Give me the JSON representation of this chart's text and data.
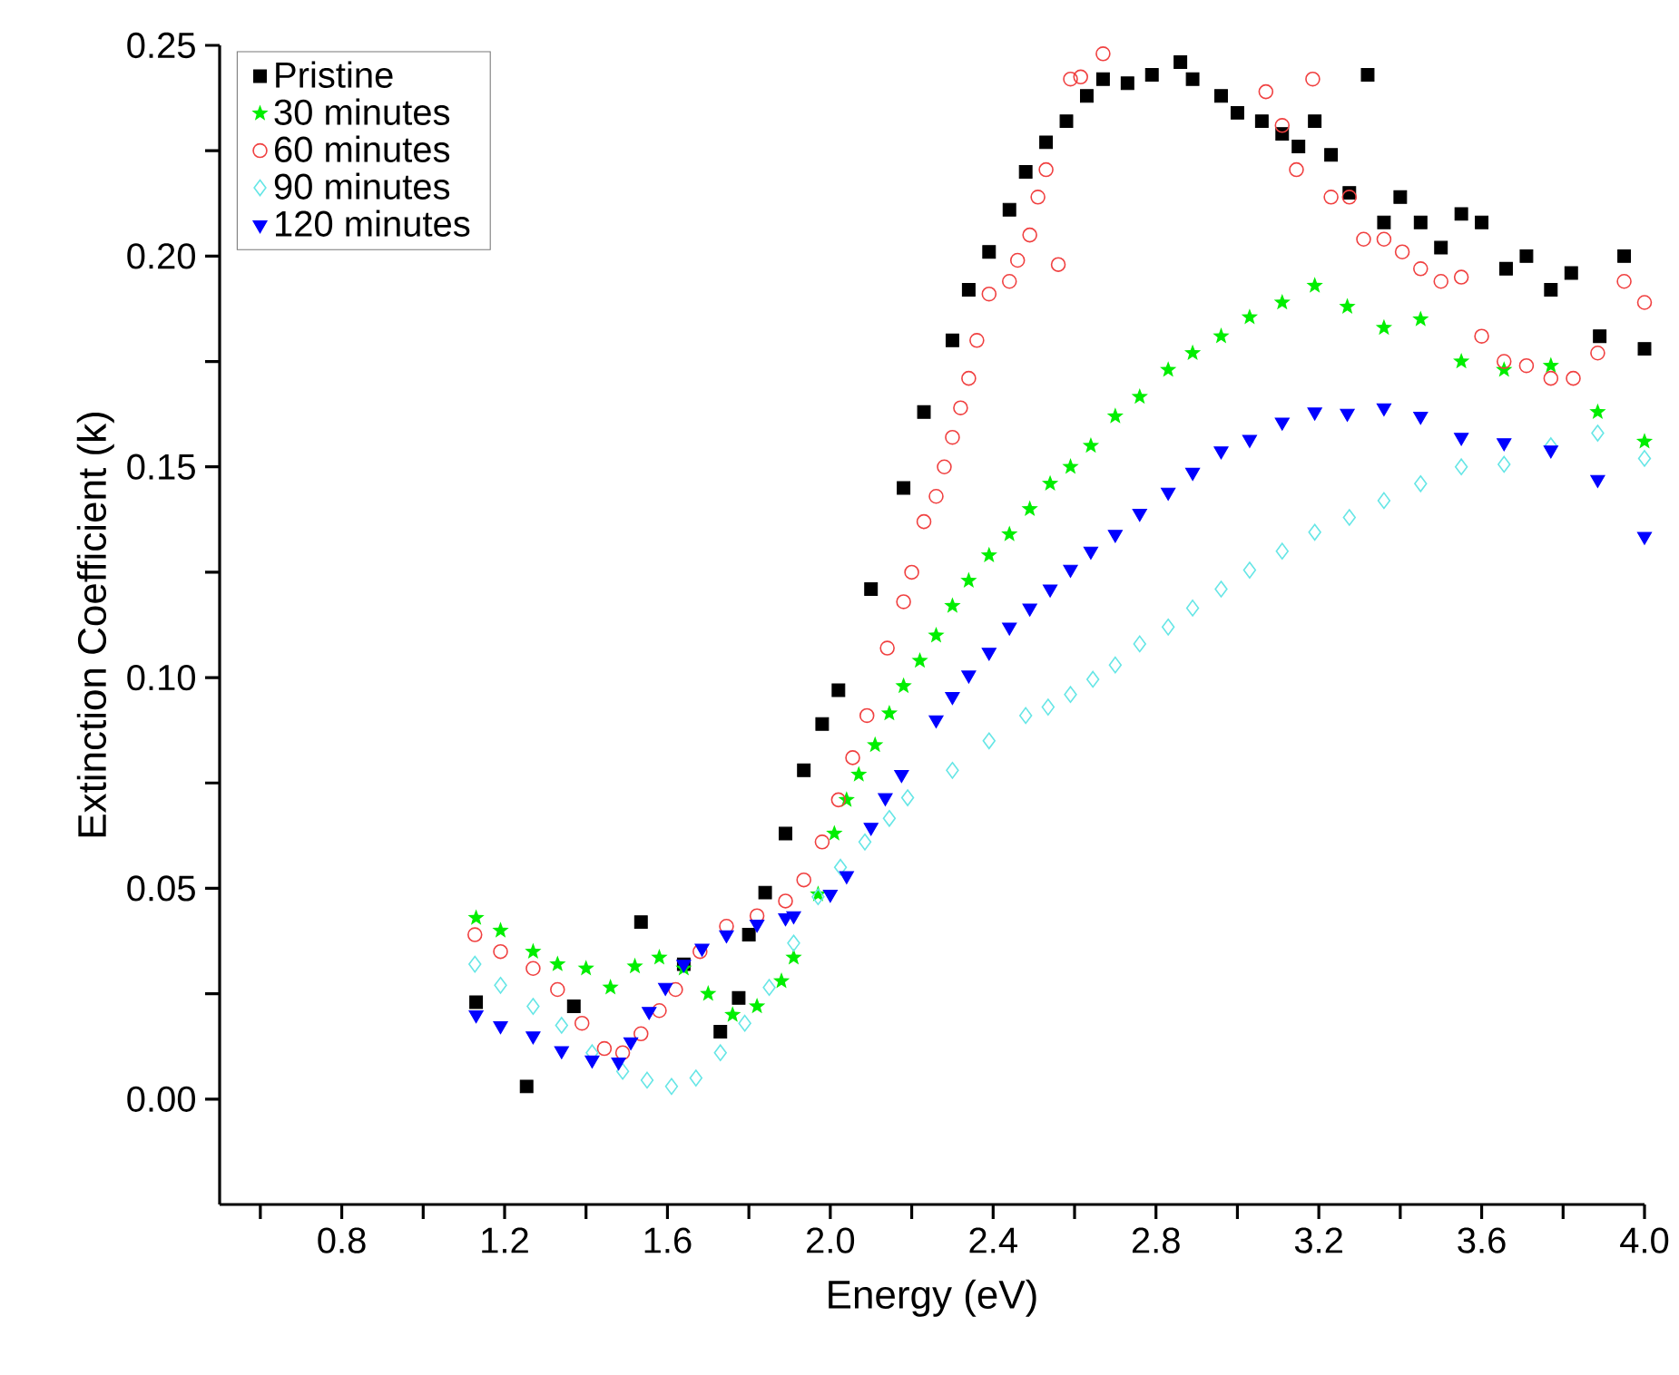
{
  "chart_data": {
    "type": "scatter",
    "xlabel": "Energy (eV)",
    "ylabel": "Extinction Coefficient (k)",
    "xlim": [
      0.5,
      4.0
    ],
    "ylim": [
      -0.025,
      0.25
    ],
    "xticks": [
      {
        "value": 0.6,
        "label": null
      },
      0.8,
      {
        "value": 1.0,
        "label": null
      },
      1.2,
      {
        "value": 1.4,
        "label": null
      },
      1.6,
      {
        "value": 1.8,
        "label": null
      },
      {
        "value": 2.0,
        "label": "2.0"
      },
      {
        "value": 2.2,
        "label": null
      },
      2.4,
      {
        "value": 2.6,
        "label": null
      },
      2.8,
      {
        "value": 3.0,
        "label": null
      },
      3.2,
      {
        "value": 3.4,
        "label": null
      },
      3.6,
      {
        "value": 3.8,
        "label": null
      },
      {
        "value": 4.0,
        "label": "4.0"
      }
    ],
    "yticks": [
      {
        "value": 0.0,
        "label": "0.00"
      },
      {
        "value": 0.025,
        "label": null
      },
      {
        "value": 0.05,
        "label": "0.05"
      },
      {
        "value": 0.075,
        "label": null
      },
      {
        "value": 0.1,
        "label": "0.10"
      },
      {
        "value": 0.125,
        "label": null
      },
      {
        "value": 0.15,
        "label": "0.15"
      },
      {
        "value": 0.175,
        "label": null
      },
      {
        "value": 0.2,
        "label": "0.20"
      },
      {
        "value": 0.225,
        "label": null
      },
      {
        "value": 0.25,
        "label": "0.25"
      }
    ],
    "legend": "top left",
    "grid": false,
    "series": [
      {
        "name": "Pristine",
        "color": "#000000",
        "marker": "square",
        "x": [
          1.13,
          1.254,
          1.37,
          1.535,
          1.64,
          1.73,
          1.775,
          1.8,
          1.84,
          1.89,
          1.935,
          1.98,
          2.02,
          2.1,
          2.18,
          2.23,
          2.3,
          2.34,
          2.39,
          2.44,
          2.48,
          2.53,
          2.58,
          2.63,
          2.67,
          2.73,
          2.79,
          2.86,
          2.89,
          2.96,
          3.0,
          3.06,
          3.11,
          3.15,
          3.19,
          3.23,
          3.275,
          3.32,
          3.36,
          3.4,
          3.45,
          3.5,
          3.55,
          3.6,
          3.66,
          3.71,
          3.77,
          3.82,
          3.89,
          3.95,
          4.0
        ],
        "values": [
          0.023,
          0.003,
          0.022,
          0.042,
          0.032,
          0.016,
          0.024,
          0.039,
          0.049,
          0.063,
          0.078,
          0.089,
          0.097,
          0.121,
          0.145,
          0.163,
          0.18,
          0.192,
          0.201,
          0.211,
          0.22,
          0.227,
          0.232,
          0.238,
          0.242,
          0.241,
          0.243,
          0.246,
          0.242,
          0.238,
          0.234,
          0.232,
          0.229,
          0.226,
          0.232,
          0.224,
          0.215,
          0.243,
          0.208,
          0.214,
          0.208,
          0.202,
          0.21,
          0.208,
          0.197,
          0.2,
          0.192,
          0.196,
          0.181,
          0.2,
          0.178
        ]
      },
      {
        "name": "30 minutes",
        "color": "#00ee00",
        "marker": "star",
        "x": [
          1.13,
          1.19,
          1.27,
          1.33,
          1.4,
          1.46,
          1.52,
          1.58,
          1.64,
          1.7,
          1.76,
          1.82,
          1.88,
          1.91,
          1.97,
          2.01,
          2.04,
          2.07,
          2.11,
          2.145,
          2.18,
          2.22,
          2.26,
          2.3,
          2.34,
          2.39,
          2.44,
          2.49,
          2.54,
          2.59,
          2.64,
          2.7,
          2.76,
          2.83,
          2.89,
          2.96,
          3.03,
          3.11,
          3.19,
          3.27,
          3.36,
          3.45,
          3.55,
          3.655,
          3.77,
          3.885,
          4.0
        ],
        "values": [
          0.043,
          0.04,
          0.035,
          0.032,
          0.031,
          0.0265,
          0.0315,
          0.0336,
          0.031,
          0.025,
          0.02,
          0.022,
          0.028,
          0.0336,
          0.0486,
          0.063,
          0.071,
          0.077,
          0.084,
          0.0915,
          0.098,
          0.104,
          0.11,
          0.117,
          0.123,
          0.129,
          0.134,
          0.14,
          0.146,
          0.15,
          0.155,
          0.162,
          0.1666,
          0.173,
          0.177,
          0.181,
          0.1855,
          0.189,
          0.193,
          0.188,
          0.183,
          0.185,
          0.175,
          0.173,
          0.174,
          0.163,
          0.156
        ]
      },
      {
        "name": "60 minutes",
        "color": "#f04040",
        "marker": "circle",
        "x": [
          1.127,
          1.19,
          1.27,
          1.33,
          1.39,
          1.445,
          1.49,
          1.535,
          1.58,
          1.62,
          1.68,
          1.745,
          1.82,
          1.89,
          1.935,
          1.98,
          2.02,
          2.055,
          2.09,
          2.14,
          2.18,
          2.2,
          2.23,
          2.26,
          2.28,
          2.3,
          2.32,
          2.34,
          2.36,
          2.39,
          2.44,
          2.46,
          2.49,
          2.51,
          2.53,
          2.56,
          2.59,
          2.615,
          2.67,
          3.07,
          3.11,
          3.145,
          3.185,
          3.23,
          3.275,
          3.31,
          3.36,
          3.405,
          3.45,
          3.5,
          3.55,
          3.6,
          3.655,
          3.71,
          3.77,
          3.825,
          3.885,
          3.95,
          4.0
        ],
        "values": [
          0.039,
          0.035,
          0.031,
          0.026,
          0.018,
          0.012,
          0.011,
          0.0155,
          0.021,
          0.026,
          0.035,
          0.041,
          0.0435,
          0.047,
          0.052,
          0.061,
          0.071,
          0.081,
          0.091,
          0.107,
          0.118,
          0.125,
          0.137,
          0.143,
          0.15,
          0.157,
          0.164,
          0.171,
          0.18,
          0.191,
          0.194,
          0.199,
          0.205,
          0.214,
          0.2205,
          0.198,
          0.242,
          0.2425,
          0.248,
          0.239,
          0.231,
          0.2205,
          0.242,
          0.214,
          0.214,
          0.204,
          0.204,
          0.201,
          0.197,
          0.194,
          0.195,
          0.181,
          0.175,
          0.174,
          0.171,
          0.171,
          0.177,
          0.194,
          0.189
        ]
      },
      {
        "name": "90 minutes",
        "color": "#66e6e6",
        "marker": "diamond",
        "x": [
          1.127,
          1.19,
          1.27,
          1.34,
          1.415,
          1.49,
          1.55,
          1.61,
          1.67,
          1.73,
          1.79,
          1.85,
          1.91,
          1.97,
          2.025,
          2.085,
          2.145,
          2.19,
          2.3,
          2.39,
          2.48,
          2.535,
          2.59,
          2.645,
          2.7,
          2.76,
          2.83,
          2.89,
          2.96,
          3.03,
          3.11,
          3.19,
          3.275,
          3.36,
          3.45,
          3.55,
          3.655,
          3.77,
          3.885,
          4.0
        ],
        "values": [
          0.032,
          0.027,
          0.022,
          0.0175,
          0.011,
          0.0066,
          0.0045,
          0.003,
          0.005,
          0.011,
          0.018,
          0.0265,
          0.037,
          0.048,
          0.055,
          0.061,
          0.0666,
          0.0715,
          0.078,
          0.085,
          0.091,
          0.093,
          0.096,
          0.0996,
          0.103,
          0.108,
          0.112,
          0.1165,
          0.121,
          0.1255,
          0.13,
          0.1345,
          0.138,
          0.142,
          0.146,
          0.15,
          0.1506,
          0.155,
          0.158,
          0.152
        ]
      },
      {
        "name": "120 minutes",
        "color": "#0000ff",
        "marker": "triangle",
        "x": [
          1.13,
          1.19,
          1.27,
          1.34,
          1.415,
          1.48,
          1.51,
          1.555,
          1.595,
          1.64,
          1.685,
          1.745,
          1.82,
          1.89,
          1.91,
          2.0,
          2.04,
          2.1,
          2.135,
          2.175,
          2.26,
          2.3,
          2.34,
          2.39,
          2.44,
          2.49,
          2.54,
          2.59,
          2.64,
          2.7,
          2.76,
          2.83,
          2.89,
          2.96,
          3.03,
          3.11,
          3.19,
          3.27,
          3.36,
          3.45,
          3.55,
          3.655,
          3.77,
          3.885,
          4.0
        ],
        "values": [
          0.02,
          0.0174,
          0.015,
          0.0115,
          0.0093,
          0.0088,
          0.0136,
          0.0208,
          0.0265,
          0.032,
          0.0358,
          0.039,
          0.0415,
          0.043,
          0.0435,
          0.0486,
          0.053,
          0.0645,
          0.0715,
          0.077,
          0.09,
          0.0955,
          0.1006,
          0.106,
          0.112,
          0.1165,
          0.121,
          0.1257,
          0.13,
          0.134,
          0.139,
          0.144,
          0.1487,
          0.1538,
          0.1565,
          0.1606,
          0.163,
          0.1627,
          0.164,
          0.162,
          0.157,
          0.1557,
          0.154,
          0.147,
          0.1335
        ]
      }
    ]
  }
}
